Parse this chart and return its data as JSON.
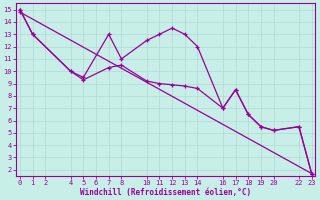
{
  "xlabel": "Windchill (Refroidissement éolien,°C)",
  "bg_color": "#c8eee8",
  "line_color": "#990099",
  "grid_color": "#b0d8d0",
  "xticks": [
    0,
    1,
    2,
    4,
    5,
    6,
    7,
    8,
    10,
    11,
    12,
    13,
    14,
    16,
    17,
    18,
    19,
    20,
    22,
    23
  ],
  "yticks": [
    2,
    3,
    4,
    5,
    6,
    7,
    8,
    9,
    10,
    11,
    12,
    13,
    14,
    15
  ],
  "xlim": [
    -0.3,
    23.3
  ],
  "ylim": [
    1.5,
    15.5
  ],
  "series1_x": [
    0,
    1,
    4,
    5,
    7,
    8,
    10,
    11,
    12,
    13,
    14,
    16,
    17,
    18,
    19,
    20,
    22,
    23
  ],
  "series1_y": [
    15,
    13,
    10,
    9.5,
    13,
    11,
    12.5,
    13,
    13.5,
    13,
    12,
    7,
    8.5,
    6.5,
    5.5,
    5.2,
    5.5,
    1.7
  ],
  "series2_x": [
    0,
    1,
    4,
    5,
    7,
    8,
    10,
    11,
    12,
    13,
    14,
    16,
    17,
    18,
    19,
    20,
    22,
    23
  ],
  "series2_y": [
    15,
    13,
    10,
    9.3,
    10.3,
    10.5,
    9.2,
    9.0,
    8.9,
    8.8,
    8.6,
    7,
    8.5,
    6.5,
    5.5,
    5.2,
    5.5,
    1.7
  ],
  "series3_x": [
    0,
    23
  ],
  "series3_y": [
    14.8,
    1.7
  ]
}
